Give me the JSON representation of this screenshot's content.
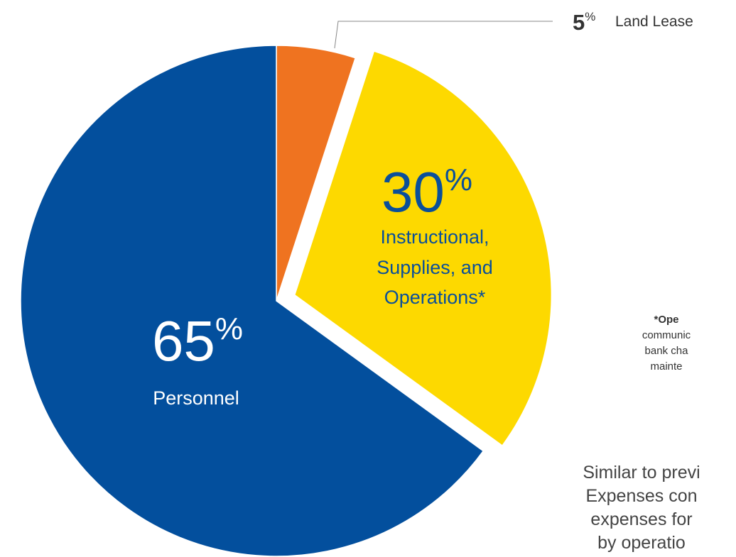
{
  "chart_data": {
    "type": "pie",
    "slices": [
      {
        "label": "Personnel",
        "value": 65,
        "display": "65",
        "unit": "%",
        "color": "#034f9d",
        "text_color": "#ffffff"
      },
      {
        "label": "Land Lease",
        "value": 5,
        "display": "5",
        "unit": "%",
        "color": "#ef7320",
        "text_color": "#333333"
      },
      {
        "label": "Instructional, Supplies, and Operations*",
        "label_lines": [
          "Instructional,",
          "Supplies, and",
          "Operations*"
        ],
        "value": 30,
        "display": "30",
        "unit": "%",
        "color": "#fdd900",
        "text_color": "#0a4f9a"
      }
    ],
    "exploded_slice": "Instructional, Supplies, and Operations*",
    "callout_slice": "Land Lease"
  },
  "footnote": {
    "title": "*Ope",
    "lines": [
      "communic",
      "bank cha",
      "mainte"
    ]
  },
  "summary": {
    "lines": [
      "Similar to previ",
      "Expenses con",
      "expenses for",
      "by operatio"
    ]
  }
}
